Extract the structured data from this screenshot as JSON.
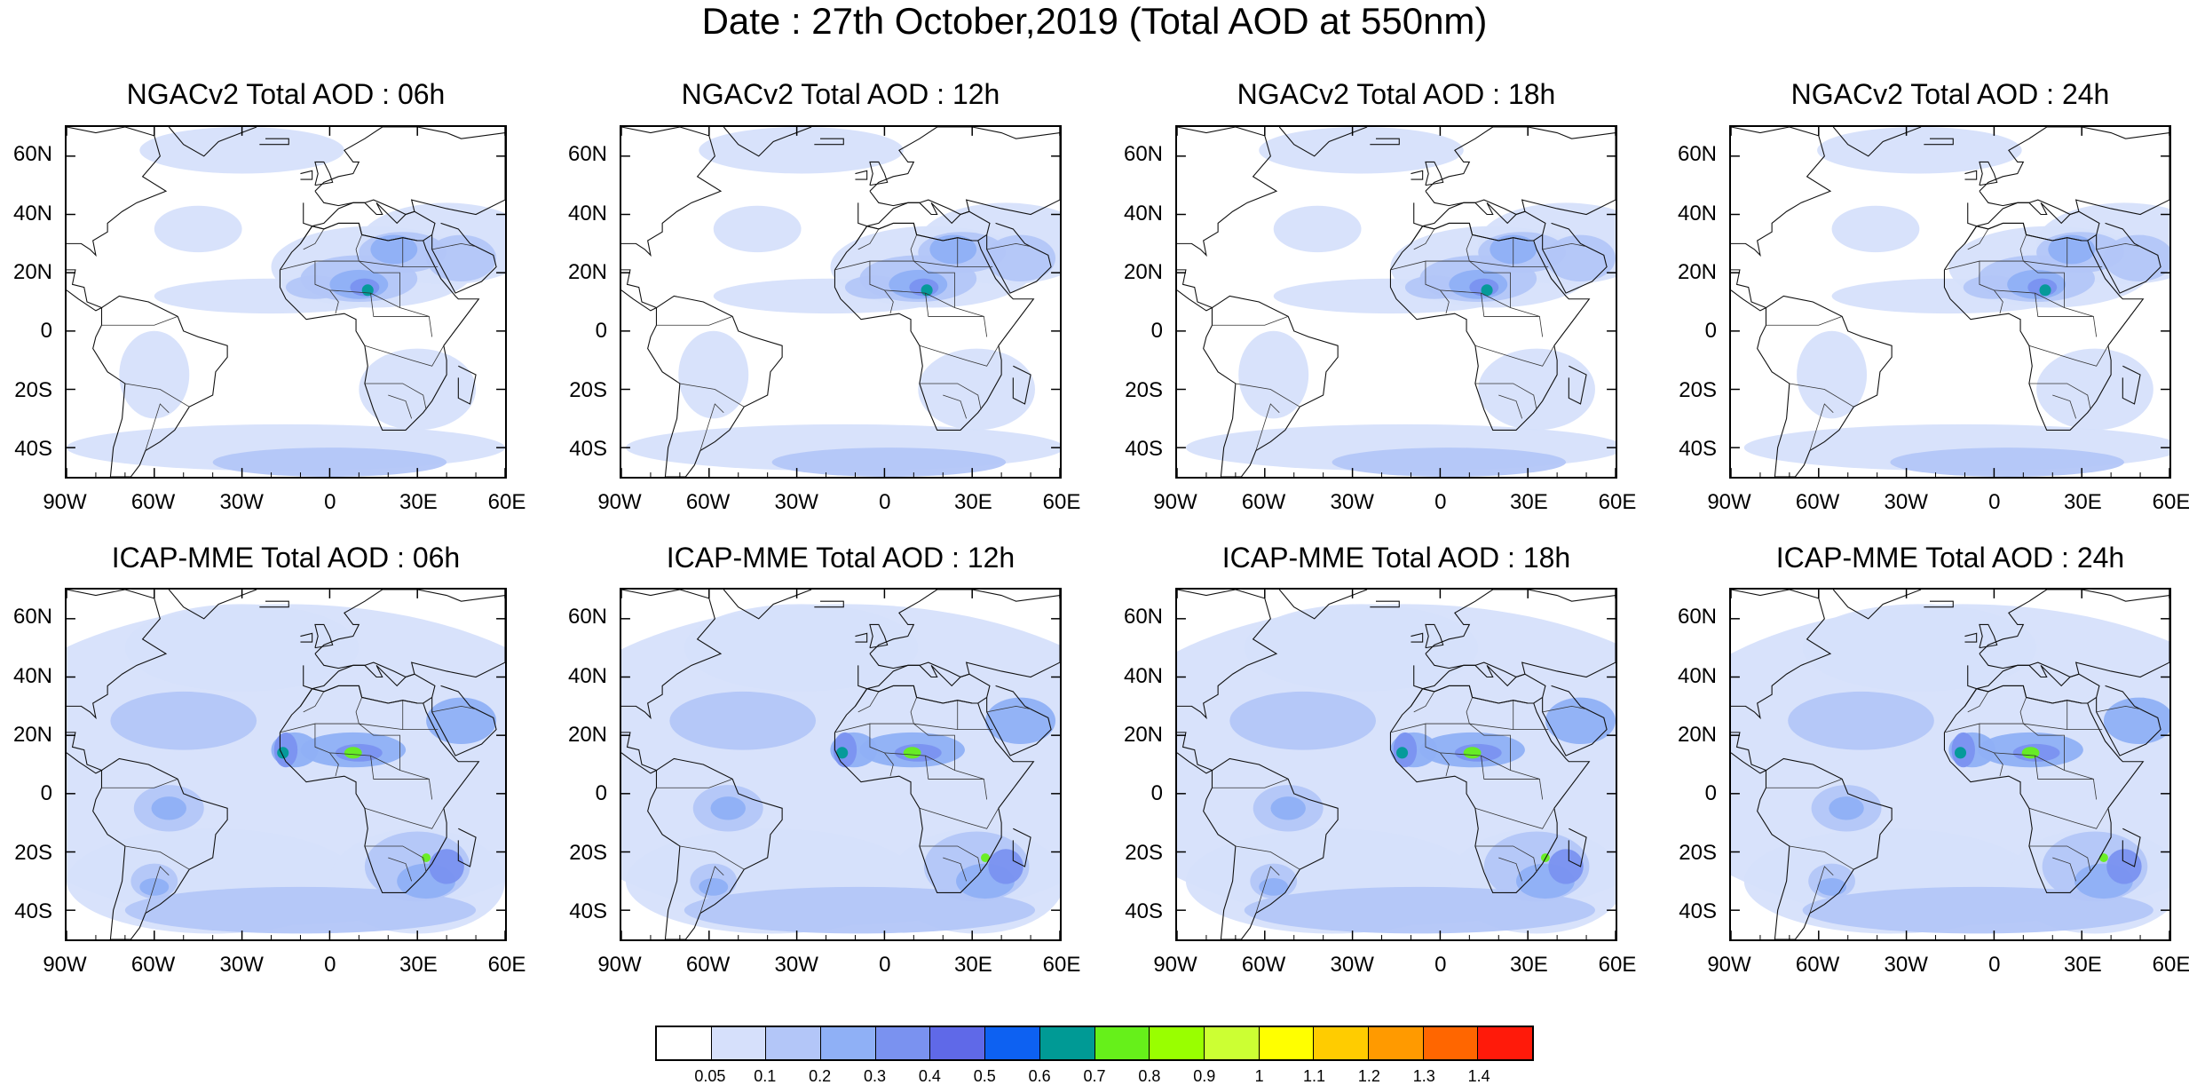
{
  "title": "Date : 27th October,2019 (Total AOD at 550nm)",
  "panels": [
    {
      "title": "NGACv2 Total AOD : 06h",
      "model": "NGACv2",
      "hour": "06h"
    },
    {
      "title": "NGACv2 Total AOD : 12h",
      "model": "NGACv2",
      "hour": "12h"
    },
    {
      "title": "NGACv2 Total AOD : 18h",
      "model": "NGACv2",
      "hour": "18h"
    },
    {
      "title": "NGACv2 Total AOD : 24h",
      "model": "NGACv2",
      "hour": "24h"
    },
    {
      "title": "ICAP-MME Total AOD : 06h",
      "model": "ICAP-MME",
      "hour": "06h"
    },
    {
      "title": "ICAP-MME Total AOD : 12h",
      "model": "ICAP-MME",
      "hour": "12h"
    },
    {
      "title": "ICAP-MME Total AOD : 18h",
      "model": "ICAP-MME",
      "hour": "18h"
    },
    {
      "title": "ICAP-MME Total AOD : 24h",
      "model": "ICAP-MME",
      "hour": "24h"
    }
  ],
  "lat_ticks": [
    "60N",
    "40N",
    "20N",
    "0",
    "20S",
    "40S"
  ],
  "lon_ticks": [
    "90W",
    "60W",
    "30W",
    "0",
    "30E",
    "60E"
  ],
  "colorbar": {
    "colors": [
      "#ffffff",
      "#d6e0fb",
      "#b3c6f8",
      "#8fb0f6",
      "#7a92f0",
      "#5f69e8",
      "#0d61f2",
      "#009a95",
      "#66f01a",
      "#99ff00",
      "#ccff33",
      "#ffff00",
      "#ffcc00",
      "#ff9a00",
      "#ff6600",
      "#ff1a0a"
    ],
    "labels": [
      "0.05",
      "0.1",
      "0.2",
      "0.3",
      "0.4",
      "0.5",
      "0.6",
      "0.7",
      "0.8",
      "0.9",
      "1",
      "1.1",
      "1.2",
      "1.3",
      "1.4"
    ]
  }
}
